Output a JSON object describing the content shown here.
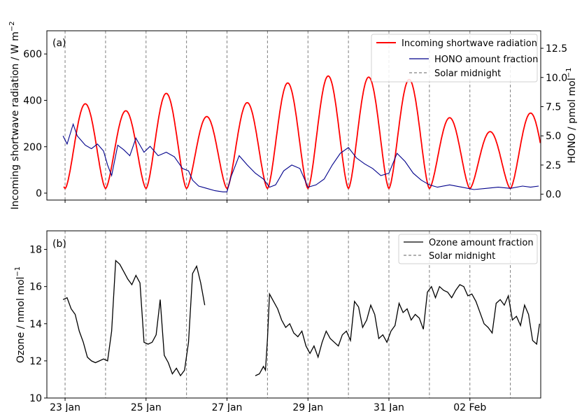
{
  "chart_data": [
    {
      "panel_label": "(a)",
      "type": "line",
      "ylabel_left": "Incoming shortwave radiation / W m",
      "ylabel_left_sup": "−2",
      "ylabel_right": "HONO / pmol mol",
      "ylabel_right_sup": "−1",
      "ylim_left": [
        -30,
        700
      ],
      "ylim_right": [
        -0.5,
        14
      ],
      "xlim_days": [
        22.55,
        34.75
      ],
      "left_ticks": [
        "0",
        "200",
        "400",
        "600"
      ],
      "right_ticks": [
        "0.0",
        "2.5",
        "5.0",
        "7.5",
        "10.0",
        "12.5"
      ],
      "solar_midnights_days": [
        23.0,
        24.0,
        25.0,
        26.0,
        27.0,
        28.0,
        29.0,
        30.0,
        31.0,
        32.0,
        33.0,
        34.0
      ],
      "legend": {
        "placement": "top-right",
        "items": [
          {
            "label": "Incoming shortwave radiation",
            "color": "#ff0000",
            "style": "solid"
          },
          {
            "label": "HONO amount fraction",
            "color": "#00008b",
            "style": "solid"
          },
          {
            "label": "Solar midnight",
            "color": "#808080",
            "style": "dashed"
          }
        ]
      },
      "series": [
        {
          "name": "Incoming shortwave radiation",
          "axis": "left",
          "color": "#ff0000",
          "daily_peaks": [
            {
              "day": 23.5,
              "peak": 385
            },
            {
              "day": 24.5,
              "peak": 355
            },
            {
              "day": 25.5,
              "peak": 430
            },
            {
              "day": 26.5,
              "peak": 330
            },
            {
              "day": 27.5,
              "peak": 390
            },
            {
              "day": 28.5,
              "peak": 475
            },
            {
              "day": 29.5,
              "peak": 505
            },
            {
              "day": 30.5,
              "peak": 500
            },
            {
              "day": 31.5,
              "peak": 490
            },
            {
              "day": 32.5,
              "peak": 325
            },
            {
              "day": 33.5,
              "peak": 265
            },
            {
              "day": 34.5,
              "peak": 345
            }
          ],
          "nighttime_minimum": 20
        },
        {
          "name": "HONO amount fraction",
          "axis": "right",
          "color": "#00008b",
          "x_days": [
            22.95,
            23.05,
            23.2,
            23.3,
            23.4,
            23.5,
            23.65,
            23.8,
            23.95,
            24.05,
            24.15,
            24.3,
            24.45,
            24.6,
            24.75,
            24.85,
            24.95,
            25.1,
            25.3,
            25.5,
            25.7,
            25.9,
            26.05,
            26.15,
            26.3,
            26.5,
            26.7,
            26.9,
            27.0,
            27.1,
            27.3,
            27.5,
            27.7,
            27.9,
            28.05,
            28.2,
            28.4,
            28.6,
            28.8,
            29.0,
            29.2,
            29.4,
            29.6,
            29.8,
            30.0,
            30.2,
            30.4,
            30.6,
            30.8,
            31.0,
            31.2,
            31.4,
            31.6,
            31.8,
            32.0,
            32.2,
            32.5,
            32.8,
            33.1,
            33.4,
            33.7,
            34.0,
            34.3,
            34.5,
            34.7
          ],
          "values": [
            5.0,
            4.3,
            6.0,
            5.0,
            4.6,
            4.2,
            3.9,
            4.3,
            3.7,
            2.5,
            1.6,
            4.2,
            3.8,
            3.3,
            4.8,
            4.2,
            3.6,
            4.1,
            3.3,
            3.6,
            3.2,
            2.2,
            2.0,
            1.2,
            0.7,
            0.5,
            0.3,
            0.2,
            0.2,
            1.5,
            3.3,
            2.5,
            1.8,
            1.3,
            0.6,
            0.8,
            2.0,
            2.5,
            2.2,
            0.6,
            0.8,
            1.3,
            2.5,
            3.5,
            4.0,
            3.1,
            2.6,
            2.2,
            1.6,
            1.8,
            3.5,
            2.8,
            1.8,
            1.2,
            0.8,
            0.6,
            0.8,
            0.6,
            0.4,
            0.5,
            0.6,
            0.5,
            0.7,
            0.6,
            0.7
          ]
        }
      ]
    },
    {
      "panel_label": "(b)",
      "type": "line",
      "ylabel": "Ozone / nmol mol",
      "ylabel_sup": "−1",
      "ylim": [
        10,
        19
      ],
      "xlim_days": [
        22.55,
        34.75
      ],
      "y_ticks": [
        "10",
        "12",
        "14",
        "16",
        "18"
      ],
      "x_ticks": [
        "23 Jan",
        "25 Jan",
        "27 Jan",
        "29 Jan",
        "31 Jan",
        "02 Feb"
      ],
      "x_ticks_days": [
        23,
        25,
        27,
        29,
        31,
        33
      ],
      "solar_midnights_days": [
        23.0,
        24.0,
        25.0,
        26.0,
        27.0,
        28.0,
        29.0,
        30.0,
        31.0,
        32.0,
        33.0,
        34.0
      ],
      "legend": {
        "placement": "top-right",
        "items": [
          {
            "label": "Ozone amount fraction",
            "color": "#000000",
            "style": "solid"
          },
          {
            "label": "Solar midnight",
            "color": "#808080",
            "style": "dashed"
          }
        ]
      },
      "series": [
        {
          "name": "Ozone amount fraction",
          "color": "#000000",
          "segments": [
            {
              "x_days": [
                22.95,
                23.05,
                23.15,
                23.25,
                23.35,
                23.45,
                23.55,
                23.65,
                23.75,
                23.85,
                23.95,
                24.05,
                24.15,
                24.25,
                24.35,
                24.45,
                24.55,
                24.65,
                24.75,
                24.85,
                24.95,
                25.05,
                25.15,
                25.25,
                25.35,
                25.45,
                25.55,
                25.65,
                25.75,
                25.85,
                25.95,
                26.05,
                26.15,
                26.25,
                26.35,
                26.45
              ],
              "values": [
                15.3,
                15.4,
                14.8,
                14.5,
                13.6,
                13.0,
                12.2,
                12.0,
                11.9,
                12.0,
                12.1,
                12.0,
                13.6,
                17.4,
                17.2,
                16.8,
                16.4,
                16.1,
                16.6,
                16.2,
                13.0,
                12.9,
                13.0,
                13.4,
                15.3,
                12.3,
                11.9,
                11.3,
                11.6,
                11.2,
                11.5,
                13.0,
                16.7,
                17.1,
                16.2,
                15.0
              ]
            },
            {
              "x_days": [
                27.7,
                27.8,
                27.9,
                27.95,
                28.0,
                28.05,
                28.15,
                28.25,
                28.35,
                28.45,
                28.55,
                28.65,
                28.75,
                28.85,
                28.95,
                29.05,
                29.15,
                29.25,
                29.35,
                29.45,
                29.55,
                29.65,
                29.75,
                29.85,
                29.95,
                30.05,
                30.15,
                30.25,
                30.35,
                30.45,
                30.55,
                30.65,
                30.75,
                30.85,
                30.95,
                31.05,
                31.15,
                31.25,
                31.35,
                31.45,
                31.55,
                31.65,
                31.75,
                31.85,
                31.95,
                32.05,
                32.15,
                32.25,
                32.35,
                32.45,
                32.55,
                32.65,
                32.75,
                32.85,
                32.95,
                33.05,
                33.15,
                33.25,
                33.35,
                33.45,
                33.55,
                33.65,
                33.75,
                33.85,
                33.95,
                34.05,
                34.15,
                34.25,
                34.35,
                34.45,
                34.55,
                34.65,
                34.72
              ],
              "values": [
                11.2,
                11.3,
                11.7,
                11.5,
                13.2,
                15.6,
                15.2,
                14.8,
                14.2,
                13.8,
                14.0,
                13.5,
                13.3,
                13.6,
                12.8,
                12.4,
                12.8,
                12.2,
                13.0,
                13.6,
                13.2,
                13.0,
                12.8,
                13.4,
                13.6,
                13.1,
                15.2,
                14.9,
                13.8,
                14.2,
                15.0,
                14.5,
                13.2,
                13.4,
                13.0,
                13.6,
                13.9,
                15.1,
                14.6,
                14.8,
                14.2,
                14.5,
                14.3,
                13.7,
                15.7,
                16.0,
                15.4,
                16.0,
                15.8,
                15.7,
                15.4,
                15.8,
                16.1,
                16.0,
                15.5,
                15.6,
                15.2,
                14.6,
                14.0,
                13.8,
                13.5,
                15.1,
                15.3,
                15.0,
                15.5,
                14.2,
                14.4,
                13.9,
                15.0,
                14.5,
                13.1,
                12.9,
                14.0
              ]
            }
          ]
        }
      ]
    }
  ]
}
